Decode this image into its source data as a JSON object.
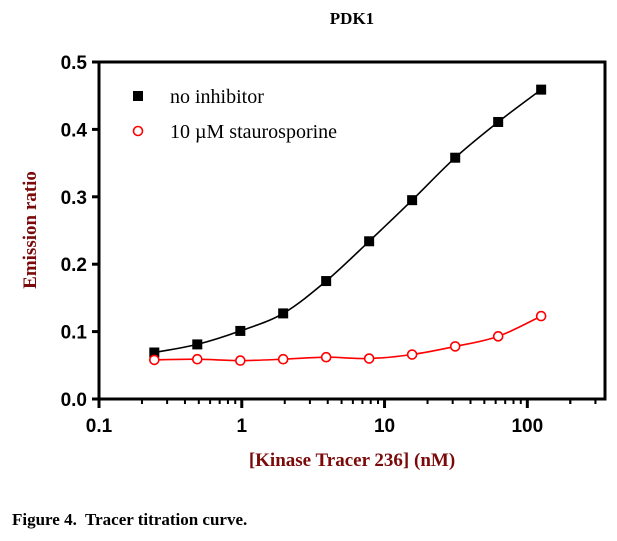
{
  "chart_data": {
    "type": "scatter",
    "title": "PDK1",
    "xlabel": "[Kinase Tracer 236] (nM)",
    "ylabel": "Emission ratio",
    "xscale": "log",
    "xlim": [
      0.1,
      350
    ],
    "ylim": [
      0,
      0.5
    ],
    "xticks": [
      "0.1",
      "1",
      "10",
      "100"
    ],
    "yticks": [
      "0.0",
      "0.1",
      "0.2",
      "0.3",
      "0.4",
      "0.5"
    ],
    "legend_placement": "top-left",
    "x": [
      0.244,
      0.488,
      0.977,
      1.95,
      3.9,
      7.8,
      15.6,
      31.25,
      62.5,
      125
    ],
    "series": [
      {
        "name": "no inhibitor",
        "marker": "filled-square",
        "color": "#000000",
        "values": [
          0.069,
          0.081,
          0.101,
          0.127,
          0.175,
          0.234,
          0.295,
          0.358,
          0.411,
          0.459
        ]
      },
      {
        "name": "10 µM staurosporine",
        "marker": "open-circle",
        "color": "#ff0000",
        "values": [
          0.058,
          0.059,
          0.057,
          0.059,
          0.062,
          0.06,
          0.066,
          0.078,
          0.093,
          0.123
        ]
      }
    ]
  },
  "caption": "Figure 4.  Tracer titration curve.",
  "colors": {
    "axis_label": "#7a0a0a"
  }
}
